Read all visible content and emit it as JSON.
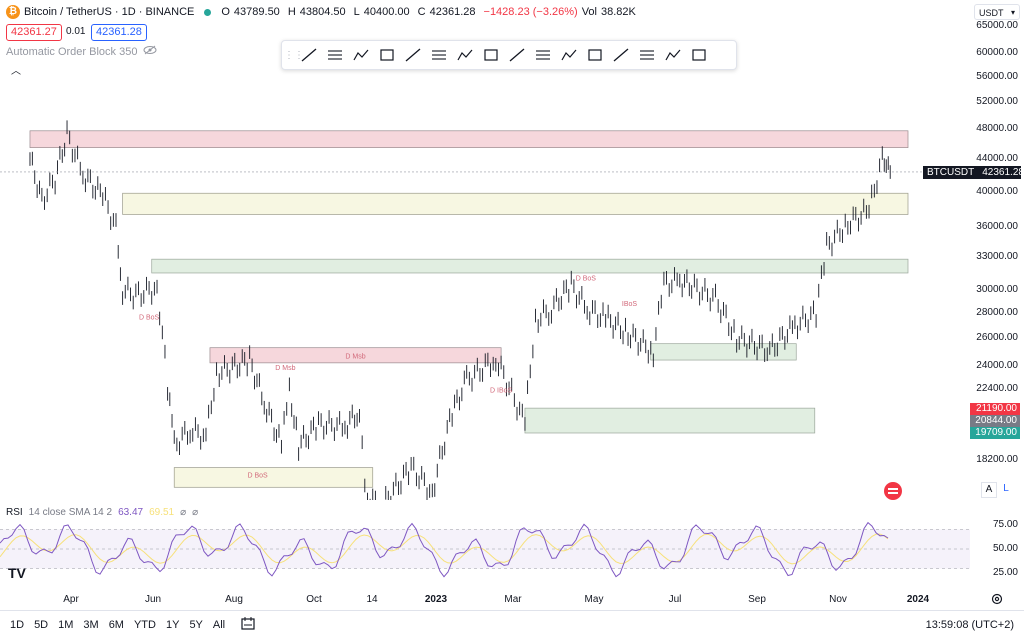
{
  "header": {
    "symbol": "Bitcoin / TetherUS · 1D · BINANCE",
    "open_label": "O",
    "open": "43789.50",
    "high_label": "H",
    "high": "43804.50",
    "low_label": "L",
    "low": "40400.00",
    "close_label": "C",
    "close": "42361.28",
    "change": "−1428.23 (−3.26%)",
    "vol_label": "Vol",
    "vol": "38.82K",
    "sell_price": "42361.27",
    "spread": "0.01",
    "buy_price": "42361.28"
  },
  "indicator": {
    "label": "Automatic Order Block 350",
    "icon": "eye-slash-icon"
  },
  "toolbar": {
    "tools": [
      "trend-line-icon",
      "horizontal-lines-icon",
      "fib-fan-icon",
      "parallel-channel-icon",
      "path-icon",
      "arc-icon",
      "horizontal-ray-icon",
      "brush-icon",
      "pattern-icon",
      "rectangle-icon",
      "ray-icon",
      "zigzag-icon",
      "elliott-icon",
      "lines-group-icon",
      "box-icon",
      "nodes-icon"
    ]
  },
  "currency_selector": "USDT",
  "chart_data": {
    "type": "candlestick",
    "title": "Bitcoin / TetherUS · 1D · BINANCE",
    "y_ticks": [
      "65000.00",
      "60000.00",
      "56000.00",
      "52000.00",
      "48000.00",
      "44000.00",
      "40000.00",
      "36000.00",
      "33000.00",
      "30000.00",
      "28000.00",
      "26000.00",
      "24000.00",
      "22400.00",
      "20800.00",
      "18200.00"
    ],
    "x_ticks": [
      "Apr",
      "Jun",
      "Aug",
      "Oct",
      "14",
      "2023",
      "Mar",
      "May",
      "Jul",
      "Sep",
      "Nov",
      "2024"
    ],
    "last_price_tag": {
      "label": "BTCUSDT",
      "value": "42361.28"
    },
    "level_tags": [
      {
        "value": "21190.00",
        "color": "#f23645"
      },
      {
        "value": "20844.00",
        "color": "#787b86"
      },
      {
        "value": "19709.00",
        "color": "#26a69a"
      }
    ],
    "series": [
      {
        "name": "BTCUSDT",
        "points": [
          [
            "2022-03-01",
            44000
          ],
          [
            "2022-03-10",
            39000
          ],
          [
            "2022-03-20",
            41500
          ],
          [
            "2022-03-29",
            47300
          ],
          [
            "2022-04-10",
            42000
          ],
          [
            "2022-04-25",
            39500
          ],
          [
            "2022-05-05",
            36000
          ],
          [
            "2022-05-10",
            30000
          ],
          [
            "2022-05-20",
            29500
          ],
          [
            "2022-06-05",
            30200
          ],
          [
            "2022-06-13",
            22500
          ],
          [
            "2022-06-18",
            19000
          ],
          [
            "2022-06-30",
            19900
          ],
          [
            "2022-07-12",
            19500
          ],
          [
            "2022-07-20",
            23500
          ],
          [
            "2022-07-30",
            23800
          ],
          [
            "2022-08-14",
            24400
          ],
          [
            "2022-08-25",
            21500
          ],
          [
            "2022-09-07",
            19000
          ],
          [
            "2022-09-13",
            22300
          ],
          [
            "2022-09-20",
            19000
          ],
          [
            "2022-10-05",
            20200
          ],
          [
            "2022-10-25",
            20100
          ],
          [
            "2022-11-05",
            21000
          ],
          [
            "2022-11-09",
            16500
          ],
          [
            "2022-11-21",
            15800
          ],
          [
            "2022-12-14",
            17800
          ],
          [
            "2022-12-30",
            16550
          ],
          [
            "2023-01-14",
            20900
          ],
          [
            "2023-01-25",
            23000
          ],
          [
            "2023-02-16",
            24500
          ],
          [
            "2023-03-10",
            20200
          ],
          [
            "2023-03-18",
            27400
          ],
          [
            "2023-03-30",
            28400
          ],
          [
            "2023-04-14",
            30400
          ],
          [
            "2023-04-26",
            28300
          ],
          [
            "2023-05-10",
            27600
          ],
          [
            "2023-05-25",
            26500
          ],
          [
            "2023-06-15",
            25000
          ],
          [
            "2023-06-23",
            30500
          ],
          [
            "2023-07-05",
            30800
          ],
          [
            "2023-07-14",
            30300
          ],
          [
            "2023-08-01",
            29200
          ],
          [
            "2023-08-17",
            26000
          ],
          [
            "2023-09-11",
            25100
          ],
          [
            "2023-09-30",
            27000
          ],
          [
            "2023-10-16",
            28000
          ],
          [
            "2023-10-24",
            34000
          ],
          [
            "2023-11-09",
            36500
          ],
          [
            "2023-11-25",
            37800
          ],
          [
            "2023-12-05",
            44000
          ],
          [
            "2023-12-08",
            44200
          ],
          [
            "2023-12-11",
            42361
          ]
        ]
      },
      {
        "name": "RSI 14 close SMA 14 2",
        "value": "63.47",
        "sma_value": "69.51",
        "y_ticks": [
          "75.00",
          "50.00",
          "25.00"
        ]
      }
    ],
    "order_blocks": [
      {
        "from": "2022-03-01",
        "to": "2023-12-25",
        "low": 45500,
        "high": 47800,
        "kind": "bear"
      },
      {
        "from": "2022-05-10",
        "to": "2023-12-25",
        "low": 37400,
        "high": 39800,
        "kind": "neutral"
      },
      {
        "from": "2022-06-01",
        "to": "2023-12-25",
        "low": 31500,
        "high": 32800,
        "kind": "bull"
      },
      {
        "from": "2022-07-15",
        "to": "2023-02-20",
        "low": 24200,
        "high": 25300,
        "kind": "bear",
        "label": "D Msb"
      },
      {
        "from": "2022-06-18",
        "to": "2022-11-15",
        "low": 16800,
        "high": 17800,
        "kind": "neutral"
      },
      {
        "from": "2023-06-13",
        "to": "2023-10-01",
        "low": 24400,
        "high": 25600,
        "kind": "bull"
      },
      {
        "from": "2023-03-10",
        "to": "2023-10-15",
        "low": 19700,
        "high": 21190,
        "kind": "bull"
      }
    ],
    "annotations": [
      "D BoS",
      "D Msb",
      "D IBoS",
      "D BoS",
      "IBoS",
      "D BoS"
    ]
  },
  "rsi_panel": {
    "label": "RSI",
    "params": "14 close SMA 14 2",
    "value": "63.47",
    "sma_value": "69.51"
  },
  "bottom_bar": {
    "timeframes": [
      "1D",
      "5D",
      "1M",
      "3M",
      "6M",
      "YTD",
      "1Y",
      "5Y",
      "All"
    ],
    "clock": "13:59:08 (UTC+2)"
  },
  "tv_logo": "TV",
  "scale_buttons": [
    "A",
    "L"
  ]
}
